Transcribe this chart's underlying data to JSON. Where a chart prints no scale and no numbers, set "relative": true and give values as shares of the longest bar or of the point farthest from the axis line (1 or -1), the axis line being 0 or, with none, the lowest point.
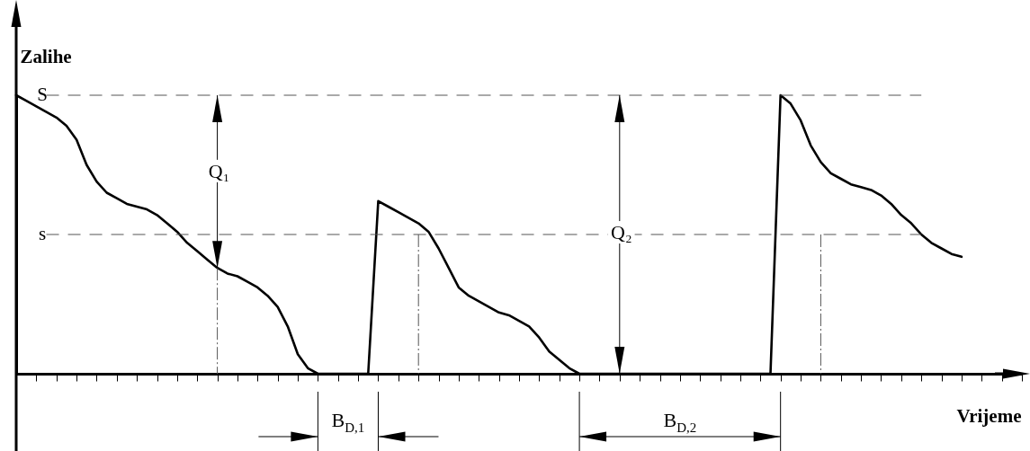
{
  "chart_data": {
    "type": "line",
    "xlabel": "Vrijeme",
    "ylabel": "Zalihe",
    "relative": true,
    "color": "#000000",
    "categories": [
      null,
      null,
      null,
      null,
      null,
      null,
      null,
      null,
      null,
      null,
      null,
      null,
      null,
      null,
      null,
      null,
      null,
      null,
      null,
      null,
      null,
      null,
      null,
      null,
      null,
      null,
      null,
      null,
      null,
      null,
      null,
      null,
      null,
      null,
      null,
      null,
      null,
      null,
      null,
      null,
      null,
      null,
      null,
      null,
      null,
      null,
      null,
      null,
      null,
      null,
      null,
      null,
      null,
      null,
      null,
      null,
      null,
      null,
      null,
      null,
      null,
      null,
      null,
      null,
      null,
      null,
      null,
      null,
      null,
      null,
      null,
      null,
      null,
      null,
      null,
      null,
      null,
      null,
      null,
      null,
      null,
      null,
      null,
      null,
      null,
      null,
      null,
      null,
      null,
      null,
      null,
      null,
      null,
      null,
      null,
      null,
      null,
      null,
      null,
      null,
      null
    ],
    "values": [
      1.0,
      0.98,
      0.96,
      0.94,
      0.92,
      0.89,
      0.84,
      0.75,
      0.69,
      0.65,
      0.63,
      0.61,
      0.6,
      0.59,
      0.57,
      0.54,
      0.51,
      0.47,
      0.44,
      0.41,
      0.38,
      0.36,
      0.35,
      0.33,
      0.31,
      0.28,
      0.24,
      0.17,
      0.07,
      0.02,
      0,
      0,
      0,
      0,
      0,
      0,
      0.62,
      0.6,
      0.58,
      0.56,
      0.54,
      0.51,
      0.45,
      0.38,
      0.31,
      0.28,
      0.26,
      0.24,
      0.22,
      0.21,
      0.19,
      0.17,
      0.13,
      0.08,
      0.05,
      0.02,
      0,
      0,
      0,
      0,
      0,
      0,
      0,
      0,
      0,
      0,
      0,
      0,
      0,
      0,
      0,
      0,
      0,
      0,
      0,
      0,
      1.0,
      0.97,
      0.91,
      0.82,
      0.76,
      0.72,
      0.7,
      0.68,
      0.67,
      0.66,
      0.64,
      0.61,
      0.57,
      0.54,
      0.5,
      0.47,
      0.45,
      0.43,
      0.42,
      null,
      null,
      null,
      null,
      null,
      null
    ],
    "ref_lines": [
      {
        "axis": "y",
        "value": 1,
        "label": "S",
        "color": "#555555",
        "line_style": "dashed"
      },
      {
        "axis": "y",
        "value": 0.5,
        "label": "s",
        "color": "#555555",
        "line_style": "dashed"
      }
    ],
    "annotations": [
      "Q₁",
      "Q₂",
      "B$_{D,1}$",
      "B$_{D,2}$"
    ]
  }
}
